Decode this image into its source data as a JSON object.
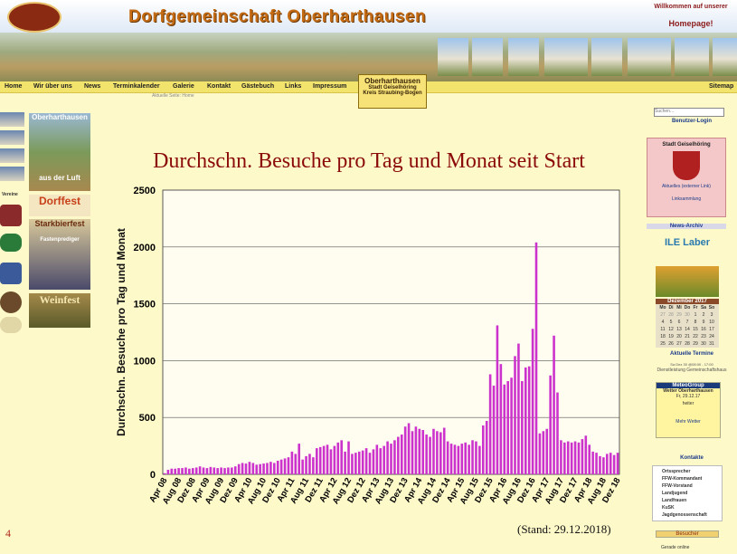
{
  "header": {
    "title": "Dorfgemeinschaft Oberharthausen",
    "welcome": "Willkommen auf unserer",
    "homepage": "Homepage!"
  },
  "nav": [
    "Home",
    "Wir über uns",
    "News",
    "Terminkalender",
    "Galerie",
    "Kontakt",
    "Gästebuch",
    "Links",
    "Impressum"
  ],
  "sitemap": "Sitemap",
  "location_box": {
    "name": "Oberharthausen",
    "city": "Stadt Geiselhöring",
    "district": "Kreis Straubing-Bogen"
  },
  "breadcrumb": "Aktuelle Seite: Home",
  "left": {
    "vereine": "Vereine",
    "tiles": [
      "Oberharthausen",
      "aus der Luft",
      "Dorffest",
      "Starkbierfest",
      "Fastenprediger",
      "Weinfest"
    ]
  },
  "right": {
    "search": "Suchen...",
    "login": "Benutzer-Login",
    "city": "Stadt Geiselhöring",
    "news": "Aktuelles (externer Link)",
    "links": "Linksammlung",
    "archive": "News-Archiv",
    "ile": "ILE Laber",
    "calendar": {
      "month": "Dezember 2017",
      "days": [
        "Mo",
        "Di",
        "Mi",
        "Do",
        "Fr",
        "Sa",
        "So"
      ],
      "weeks": [
        [
          27,
          28,
          29,
          30,
          1,
          2,
          3
        ],
        [
          4,
          5,
          6,
          7,
          8,
          9,
          10
        ],
        [
          11,
          12,
          13,
          14,
          15,
          16,
          17
        ],
        [
          18,
          19,
          20,
          21,
          22,
          23,
          24
        ],
        [
          25,
          26,
          27,
          28,
          29,
          30,
          31
        ]
      ]
    },
    "events_title": "Aktuelle Termine",
    "event": "Sa Dez 30 @08:00 - 17:00",
    "event_text": "Dienstleistung Gemeinschaftshaus",
    "weather": {
      "provider": "MeteoGroup",
      "place": "Wetter Oberharthausen",
      "date": "Fr, 29.12.17",
      "condition": "heiter",
      "more": "Mehr Wetter"
    },
    "contacts_title": "Kontakte",
    "contacts": [
      "Ortssprecher",
      "FFW-Kommandant",
      "FFW-Vorstand",
      "Landjugend",
      "Landfrauen",
      "KuSK",
      "Jagdgenossenschaft"
    ],
    "visitors": "Besucher",
    "online": "Gerade online"
  },
  "chart_data": {
    "type": "bar",
    "title": "Durchschn. Besuche pro Tag und Monat seit Start",
    "y_label": "Durchschn. Besuche pro Tag und Monat",
    "color": "#cc33cc",
    "ylim": [
      0,
      2500
    ],
    "yticks": [
      0,
      500,
      1000,
      1500,
      2000,
      2500
    ],
    "categories": [
      "Apr 08",
      null,
      null,
      null,
      "Aug 08",
      null,
      null,
      null,
      "Dez 08",
      null,
      null,
      null,
      "Apr 09",
      null,
      null,
      null,
      "Aug 09",
      null,
      null,
      null,
      "Dez 09",
      null,
      null,
      null,
      "Apr 10",
      null,
      null,
      null,
      "Aug 10",
      null,
      null,
      null,
      "Dez 10",
      null,
      null,
      null,
      "Apr 11",
      null,
      null,
      null,
      "Aug 11",
      null,
      null,
      null,
      "Dez 11",
      null,
      null,
      null,
      "Apr 12",
      null,
      null,
      null,
      "Aug 12",
      null,
      null,
      null,
      "Dez 12",
      null,
      null,
      null,
      "Apr 13",
      null,
      null,
      null,
      "Aug 13",
      null,
      null,
      null,
      "Dez 13",
      null,
      null,
      null,
      "Apr 14",
      null,
      null,
      null,
      "Aug 14",
      null,
      null,
      null,
      "Dez 14",
      null,
      null,
      null,
      "Apr 15",
      null,
      null,
      null,
      "Aug 15",
      null,
      null,
      null,
      "Dez 15",
      null,
      null,
      null,
      "Apr 16",
      null,
      null,
      null,
      "Aug 16",
      null,
      null,
      null,
      "Dez 16",
      null,
      null,
      null,
      "Apr 17",
      null,
      null,
      null,
      "Aug 17",
      null,
      null,
      null,
      "Dez 17",
      null,
      null,
      null,
      "Apr 18",
      null,
      null,
      null,
      "Aug 18",
      null,
      null,
      null,
      "Dez 18"
    ],
    "values": [
      10,
      40,
      50,
      50,
      55,
      55,
      60,
      50,
      55,
      60,
      70,
      60,
      55,
      65,
      60,
      55,
      60,
      55,
      60,
      60,
      70,
      90,
      100,
      95,
      110,
      100,
      85,
      90,
      95,
      100,
      110,
      100,
      120,
      130,
      140,
      150,
      200,
      180,
      270,
      130,
      160,
      180,
      150,
      230,
      240,
      250,
      260,
      220,
      250,
      280,
      300,
      200,
      290,
      180,
      190,
      200,
      210,
      230,
      190,
      220,
      260,
      230,
      250,
      290,
      270,
      300,
      330,
      350,
      420,
      450,
      380,
      420,
      400,
      390,
      350,
      330,
      400,
      380,
      370,
      410,
      290,
      270,
      260,
      250,
      270,
      280,
      260,
      300,
      290,
      250,
      430,
      470,
      880,
      780,
      1310,
      970,
      790,
      820,
      850,
      1040,
      1150,
      820,
      940,
      950,
      1280,
      2040,
      360,
      380,
      400,
      870,
      1220,
      720,
      300,
      280,
      290,
      280,
      290,
      280,
      310,
      340,
      260,
      200,
      190,
      160,
      150,
      180,
      190,
      170,
      190
    ]
  },
  "footer": {
    "page": "4",
    "stand": "(Stand: 29.12.2018)"
  }
}
